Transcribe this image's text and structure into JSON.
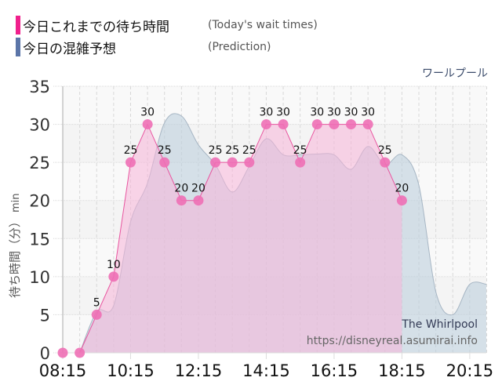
{
  "legend": {
    "today": {
      "jp": "今日これまでの待ち時間",
      "en": "(Today's wait times)",
      "color": "#f0208c"
    },
    "prediction": {
      "jp": "今日の混雑予想",
      "en": "(Prediction)",
      "color": "#5b75a8"
    }
  },
  "attraction_jp": "ワールプール",
  "credit": {
    "name": "The Whirlpool",
    "url": "https://disneyreal.asumirai.info"
  },
  "axis": {
    "ylabel_jp": "待ち時間（分）",
    "ylabel_unit": "min"
  },
  "colors": {
    "today_fill": "#f7b5d9",
    "today_line": "#e8559f",
    "today_dot": "#ee6fb5",
    "prediction_fill": "#bccfdc",
    "prediction_line": "#a7b6c4",
    "grid": "#d8d8d8",
    "band": "#f2f2f2"
  },
  "chart_data": {
    "type": "area",
    "title": "ワールプール",
    "xlabel": "",
    "ylabel": "待ち時間（分） min",
    "ylim": [
      0,
      35
    ],
    "yticks": [
      0,
      5,
      10,
      15,
      20,
      25,
      30,
      35
    ],
    "xtick_labels": [
      "08:15",
      "10:15",
      "12:15",
      "14:15",
      "16:15",
      "18:15",
      "20:15"
    ],
    "grid": true,
    "legend_position": "top-left",
    "series": [
      {
        "name": "今日これまでの待ち時間 (Today's wait times)",
        "x": [
          "08:15",
          "08:45",
          "09:15",
          "09:45",
          "10:15",
          "10:45",
          "11:15",
          "11:45",
          "12:15",
          "12:45",
          "13:15",
          "13:45",
          "14:15",
          "14:45",
          "15:15",
          "15:45",
          "16:15",
          "16:45",
          "17:15",
          "17:45",
          "18:15"
        ],
        "values": [
          0,
          0,
          5,
          10,
          25,
          30,
          25,
          20,
          20,
          25,
          25,
          25,
          30,
          30,
          25,
          30,
          30,
          30,
          30,
          25,
          20
        ],
        "data_labels": true
      },
      {
        "name": "今日の混雑予想 (Prediction)",
        "x": [
          "08:45",
          "09:15",
          "09:45",
          "10:15",
          "10:45",
          "11:15",
          "11:45",
          "12:15",
          "12:45",
          "13:15",
          "13:45",
          "14:15",
          "14:45",
          "15:15",
          "15:45",
          "16:15",
          "16:45",
          "17:15",
          "17:45",
          "18:15",
          "18:45",
          "19:15",
          "19:45",
          "20:15",
          "20:45"
        ],
        "values": [
          0,
          5.4,
          6.2,
          17.2,
          22.3,
          30.2,
          31.1,
          27.3,
          24.7,
          21.1,
          24.5,
          28.1,
          26.0,
          26.0,
          26.1,
          26.0,
          24.1,
          27.1,
          24.7,
          26.0,
          22.0,
          8.0,
          5.0,
          9.0,
          9.0
        ]
      }
    ]
  }
}
